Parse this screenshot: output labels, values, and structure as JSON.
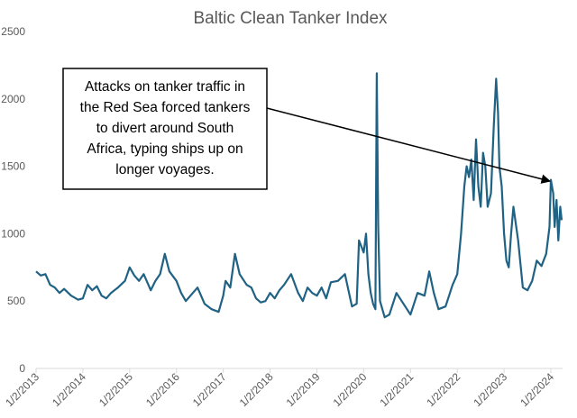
{
  "chart_data": {
    "type": "line",
    "title": "Baltic Clean Tanker Index",
    "xlabel": "",
    "ylabel": "",
    "ylim": [
      0,
      2500
    ],
    "yticks": [
      0,
      500,
      1000,
      1500,
      2000,
      2500
    ],
    "ytick_labels": [
      "0",
      "500",
      "1000",
      "1500",
      "2000",
      "2500"
    ],
    "xlim": [
      2013.0,
      2024.25
    ],
    "xticks": [
      2013,
      2014,
      2015,
      2016,
      2017,
      2018,
      2019,
      2020,
      2021,
      2022,
      2023,
      2024
    ],
    "xtick_labels": [
      "1/2/2013",
      "1/2/2014",
      "1/2/2015",
      "1/2/2016",
      "1/2/2017",
      "1/2/2018",
      "1/2/2019",
      "1/2/2020",
      "1/2/2021",
      "1/2/2022",
      "1/2/2023",
      "1/2/2024"
    ],
    "grid": false,
    "colors": {
      "line": "#1f6284",
      "axis": "#d9d9d9",
      "text": "#595959"
    },
    "series": [
      {
        "name": "Baltic Clean Tanker Index",
        "x": [
          2013.0,
          2013.1,
          2013.2,
          2013.3,
          2013.4,
          2013.5,
          2013.6,
          2013.75,
          2013.9,
          2014.0,
          2014.1,
          2014.2,
          2014.3,
          2014.4,
          2014.5,
          2014.6,
          2014.75,
          2014.9,
          2015.0,
          2015.1,
          2015.2,
          2015.3,
          2015.45,
          2015.55,
          2015.65,
          2015.75,
          2015.85,
          2016.0,
          2016.1,
          2016.2,
          2016.3,
          2016.45,
          2016.6,
          2016.75,
          2016.9,
          2017.0,
          2017.05,
          2017.15,
          2017.25,
          2017.35,
          2017.5,
          2017.6,
          2017.7,
          2017.8,
          2017.9,
          2018.0,
          2018.1,
          2018.2,
          2018.3,
          2018.45,
          2018.6,
          2018.7,
          2018.8,
          2018.9,
          2019.0,
          2019.1,
          2019.2,
          2019.3,
          2019.45,
          2019.6,
          2019.75,
          2019.85,
          2019.9,
          2020.0,
          2020.05,
          2020.1,
          2020.15,
          2020.2,
          2020.25,
          2020.28,
          2020.31,
          2020.35,
          2020.45,
          2020.55,
          2020.7,
          2020.85,
          2021.0,
          2021.15,
          2021.3,
          2021.4,
          2021.5,
          2021.6,
          2021.75,
          2021.9,
          2022.0,
          2022.08,
          2022.15,
          2022.2,
          2022.25,
          2022.3,
          2022.35,
          2022.4,
          2022.45,
          2022.5,
          2022.55,
          2022.6,
          2022.65,
          2022.72,
          2022.78,
          2022.83,
          2022.87,
          2022.9,
          2022.95,
          2023.0,
          2023.05,
          2023.1,
          2023.15,
          2023.2,
          2023.3,
          2023.4,
          2023.5,
          2023.6,
          2023.7,
          2023.8,
          2023.9,
          2023.97,
          2024.0,
          2024.05,
          2024.08,
          2024.12,
          2024.16,
          2024.2,
          2024.23
        ],
        "y": [
          720,
          690,
          700,
          620,
          600,
          560,
          590,
          540,
          510,
          520,
          620,
          580,
          610,
          540,
          520,
          560,
          600,
          650,
          750,
          690,
          650,
          700,
          580,
          650,
          700,
          850,
          720,
          650,
          560,
          500,
          540,
          600,
          480,
          440,
          420,
          540,
          650,
          600,
          850,
          700,
          620,
          600,
          520,
          490,
          500,
          560,
          520,
          580,
          620,
          700,
          560,
          500,
          600,
          560,
          540,
          600,
          520,
          640,
          650,
          700,
          460,
          480,
          950,
          860,
          1000,
          700,
          560,
          480,
          440,
          2190,
          1050,
          500,
          380,
          400,
          560,
          480,
          400,
          560,
          540,
          720,
          560,
          440,
          460,
          620,
          700,
          1000,
          1350,
          1500,
          1420,
          1550,
          1250,
          1700,
          1350,
          1200,
          1600,
          1500,
          1200,
          1300,
          1800,
          2150,
          1900,
          1500,
          1350,
          1000,
          800,
          750,
          1000,
          1200,
          950,
          600,
          580,
          650,
          800,
          760,
          850,
          1050,
          1400,
          1300,
          1050,
          1250,
          950,
          1200,
          1100
        ]
      }
    ],
    "annotation": {
      "lines": [
        "Attacks on tanker traffic in",
        "the Red Sea forced tankers",
        "to divert around South",
        "Africa, typing ships up on",
        "longer voyages."
      ],
      "arrow_target": {
        "x": 2023.98,
        "y": 1390
      }
    }
  }
}
